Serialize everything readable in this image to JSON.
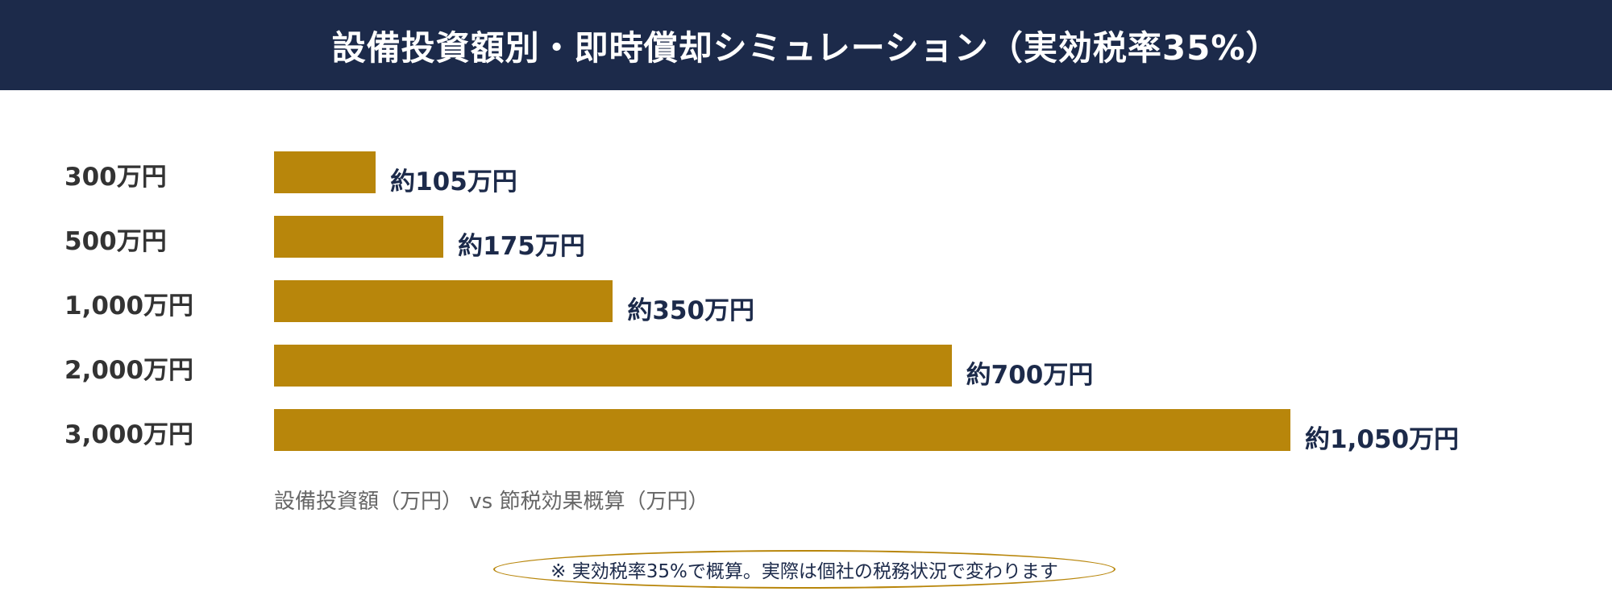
{
  "header": {
    "title": "設備投資額別・即時償却シミュレーション（実効税率35%）"
  },
  "chart_data": {
    "type": "bar",
    "orientation": "horizontal",
    "categories": [
      "300万円",
      "500万円",
      "1,000万円",
      "2,000万円",
      "3,000万円"
    ],
    "values": [
      105,
      175,
      350,
      700,
      1050
    ],
    "data_labels": [
      "約105万円",
      "約175万円",
      "約350万円",
      "約700万円",
      "約1,050万円"
    ],
    "xlabel": "設備投資額（万円） vs 節税効果概算（万円）",
    "xlim": [
      0,
      1050
    ],
    "grid": false,
    "bar_color": "#b8860b",
    "label_color": "#1c2a4a"
  },
  "note": "※ 実効税率35%で概算。実際は個社の税務状況で変わります",
  "colors": {
    "header_bg": "#1c2a4a",
    "accent": "#b8860b"
  }
}
